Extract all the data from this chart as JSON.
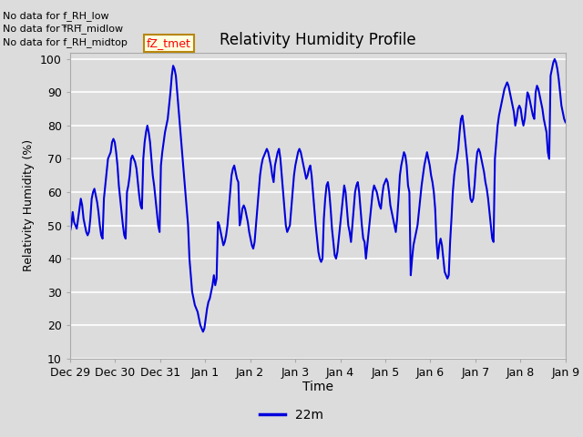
{
  "title": "Relativity Humidity Profile",
  "xlabel": "Time",
  "ylabel": "Relativity Humidity (%)",
  "legend_label": "22m",
  "ylim": [
    10,
    102
  ],
  "plot_bg_color": "#dcdcdc",
  "fig_bg_color": "#dcdcdc",
  "line_color": "#0000dd",
  "line_width": 1.5,
  "annotations": [
    "No data for f_RH_low",
    "No data for f̅RH̅_midlow",
    "No data for f_RH_midtop"
  ],
  "annotation_box_text": "fZ_tmet",
  "tick_dates": [
    "Dec 29",
    "Dec 30",
    "Dec 31",
    "Jan 1",
    "Jan 2",
    "Jan 3",
    "Jan 4",
    "Jan 5",
    "Jan 6",
    "Jan 7",
    "Jan 8",
    "Jan 9"
  ],
  "yticks": [
    10,
    20,
    30,
    40,
    50,
    60,
    70,
    80,
    90,
    100
  ],
  "rh_values": [
    48,
    50,
    54,
    51,
    50,
    49,
    52,
    55,
    58,
    56,
    52,
    50,
    48,
    47,
    48,
    52,
    58,
    60,
    61,
    59,
    57,
    54,
    50,
    47,
    46,
    58,
    62,
    66,
    70,
    71,
    72,
    75,
    76,
    75,
    72,
    68,
    62,
    58,
    54,
    50,
    47,
    46,
    60,
    62,
    65,
    70,
    71,
    70,
    69,
    67,
    63,
    59,
    56,
    55,
    70,
    75,
    78,
    80,
    78,
    75,
    70,
    65,
    62,
    58,
    54,
    50,
    48,
    68,
    72,
    75,
    78,
    80,
    82,
    86,
    90,
    95,
    98,
    97,
    95,
    90,
    85,
    80,
    75,
    70,
    65,
    60,
    55,
    50,
    40,
    35,
    30,
    28,
    26,
    25,
    24,
    22,
    20,
    19,
    18,
    19,
    22,
    25,
    27,
    28,
    30,
    32,
    35,
    32,
    34,
    51,
    50,
    48,
    46,
    44,
    45,
    47,
    50,
    55,
    60,
    65,
    67,
    68,
    66,
    64,
    63,
    50,
    52,
    55,
    56,
    55,
    53,
    51,
    48,
    46,
    44,
    43,
    45,
    50,
    55,
    60,
    65,
    68,
    70,
    71,
    72,
    73,
    72,
    70,
    68,
    65,
    63,
    68,
    70,
    72,
    73,
    70,
    65,
    60,
    55,
    50,
    48,
    49,
    50,
    55,
    60,
    65,
    68,
    70,
    72,
    73,
    72,
    70,
    68,
    66,
    64,
    65,
    67,
    68,
    65,
    60,
    55,
    50,
    46,
    42,
    40,
    39,
    40,
    52,
    58,
    62,
    63,
    60,
    55,
    49,
    45,
    41,
    40,
    42,
    46,
    50,
    54,
    58,
    62,
    60,
    55,
    50,
    48,
    45,
    50,
    55,
    60,
    62,
    63,
    60,
    55,
    50,
    46,
    45,
    40,
    44,
    48,
    52,
    56,
    60,
    62,
    61,
    60,
    58,
    56,
    55,
    59,
    62,
    63,
    64,
    63,
    60,
    56,
    54,
    52,
    50,
    48,
    52,
    58,
    65,
    68,
    70,
    72,
    71,
    68,
    62,
    60,
    35,
    40,
    44,
    46,
    48,
    50,
    54,
    58,
    62,
    65,
    68,
    70,
    72,
    70,
    68,
    65,
    63,
    60,
    55,
    45,
    40,
    44,
    46,
    44,
    40,
    36,
    35,
    34,
    35,
    45,
    52,
    60,
    65,
    68,
    70,
    73,
    78,
    82,
    83,
    80,
    76,
    72,
    68,
    62,
    58,
    57,
    58,
    62,
    68,
    72,
    73,
    72,
    70,
    68,
    66,
    63,
    61,
    58,
    54,
    50,
    46,
    45,
    70,
    75,
    80,
    83,
    85,
    87,
    89,
    91,
    92,
    93,
    92,
    90,
    88,
    86,
    84,
    80,
    82,
    85,
    86,
    85,
    82,
    80,
    82,
    86,
    90,
    89,
    87,
    85,
    83,
    82,
    90,
    92,
    91,
    89,
    87,
    85,
    82,
    80,
    78,
    72,
    70,
    95,
    97,
    99,
    100,
    99,
    97,
    94,
    90,
    86,
    84,
    82,
    81
  ]
}
